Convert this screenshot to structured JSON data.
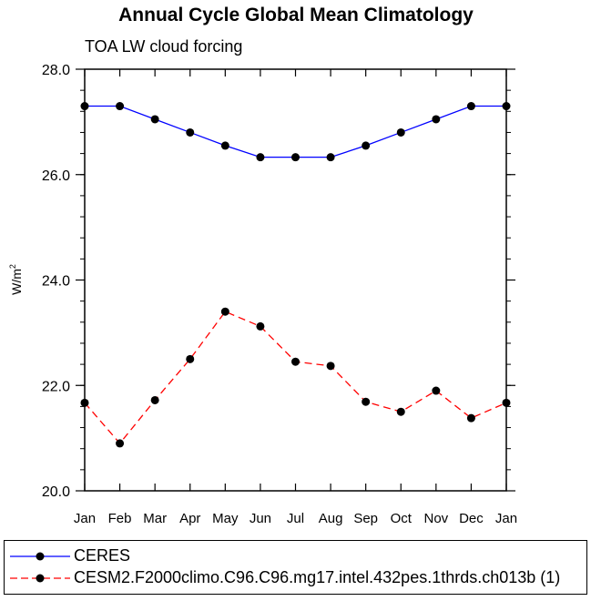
{
  "chart_data": {
    "type": "line",
    "title": "Annual Cycle Global Mean Climatology",
    "subtitle": "TOA LW cloud forcing",
    "xlabel": "",
    "ylabel": "W/m",
    "ylabel_superscript": "2",
    "categories": [
      "Jan",
      "Feb",
      "Mar",
      "Apr",
      "May",
      "Jun",
      "Jul",
      "Aug",
      "Sep",
      "Oct",
      "Nov",
      "Dec",
      "Jan"
    ],
    "ylim": [
      20.0,
      28.0
    ],
    "yticks": [
      "20.0",
      "22.0",
      "24.0",
      "26.0",
      "28.0"
    ],
    "grid": false,
    "series": [
      {
        "name": "CERES",
        "color": "#0000ff",
        "dash": "solid",
        "values": [
          27.3,
          27.3,
          27.05,
          26.8,
          26.55,
          26.33,
          26.33,
          26.33,
          26.55,
          26.8,
          27.05,
          27.3,
          27.3
        ]
      },
      {
        "name": "CESM2.F2000climo.C96.C96.mg17.intel.432pes.1thrds.ch013b (1)",
        "color": "#ff0000",
        "dash": "dashed",
        "values": [
          21.67,
          20.9,
          21.72,
          22.5,
          23.4,
          23.12,
          22.45,
          22.37,
          21.69,
          21.5,
          21.9,
          21.38,
          21.67
        ]
      }
    ]
  }
}
